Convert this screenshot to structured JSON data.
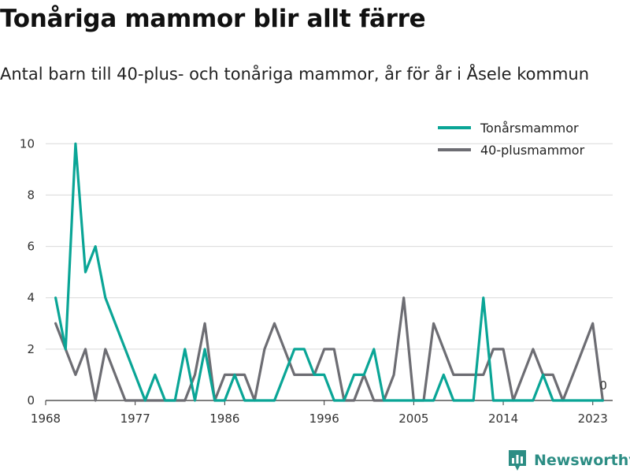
{
  "header": {
    "title": "Tonåriga mammor blir allt färre",
    "subtitle": "Antal barn till 40-plus- och tonåriga mammor, år för år i Åsele kommun"
  },
  "brand": {
    "name": "Newsworthy",
    "icon": "newsworthy-logo-icon",
    "color": "#2c8d84"
  },
  "chart_data": {
    "type": "line",
    "x": [
      1969,
      1970,
      1971,
      1972,
      1973,
      1974,
      1975,
      1976,
      1977,
      1978,
      1979,
      1980,
      1981,
      1982,
      1983,
      1984,
      1985,
      1986,
      1987,
      1988,
      1989,
      1990,
      1991,
      1992,
      1993,
      1994,
      1995,
      1996,
      1997,
      1998,
      1999,
      2000,
      2001,
      2002,
      2003,
      2004,
      2005,
      2006,
      2007,
      2008,
      2009,
      2010,
      2011,
      2012,
      2013,
      2014,
      2015,
      2016,
      2017,
      2018,
      2019,
      2020,
      2021,
      2022,
      2023,
      2024
    ],
    "series": [
      {
        "name": "Tonårsmammor",
        "color": "#0aa596",
        "values": [
          4,
          2,
          10,
          5,
          6,
          4,
          3,
          2,
          1,
          0,
          1,
          0,
          0,
          2,
          0,
          2,
          0,
          0,
          1,
          0,
          0,
          0,
          0,
          1,
          2,
          2,
          1,
          1,
          0,
          0,
          1,
          1,
          2,
          0,
          0,
          0,
          0,
          0,
          0,
          1,
          0,
          0,
          0,
          4,
          0,
          0,
          0,
          0,
          0,
          1,
          0,
          0,
          0,
          0,
          0,
          0
        ]
      },
      {
        "name": "40-plusmammor",
        "color": "#6d6d73",
        "values": [
          3,
          2,
          1,
          2,
          0,
          2,
          1,
          0,
          0,
          0,
          0,
          0,
          0,
          0,
          1,
          3,
          0,
          1,
          1,
          1,
          0,
          2,
          3,
          2,
          1,
          1,
          1,
          2,
          2,
          0,
          0,
          1,
          0,
          0,
          1,
          4,
          0,
          0,
          3,
          2,
          1,
          1,
          1,
          1,
          2,
          2,
          0,
          1,
          2,
          1,
          1,
          0,
          1,
          2,
          3,
          0
        ]
      }
    ],
    "x_ticks": [
      1968,
      1977,
      1986,
      1996,
      2005,
      2014,
      2023
    ],
    "y_ticks": [
      0,
      2,
      4,
      6,
      8,
      10
    ],
    "xlim": [
      1968,
      2025
    ],
    "ylim": [
      0,
      10.5
    ],
    "end_label": "0",
    "legend_position": "top-right",
    "grid": "horizontal",
    "xlabel": "",
    "ylabel": ""
  }
}
